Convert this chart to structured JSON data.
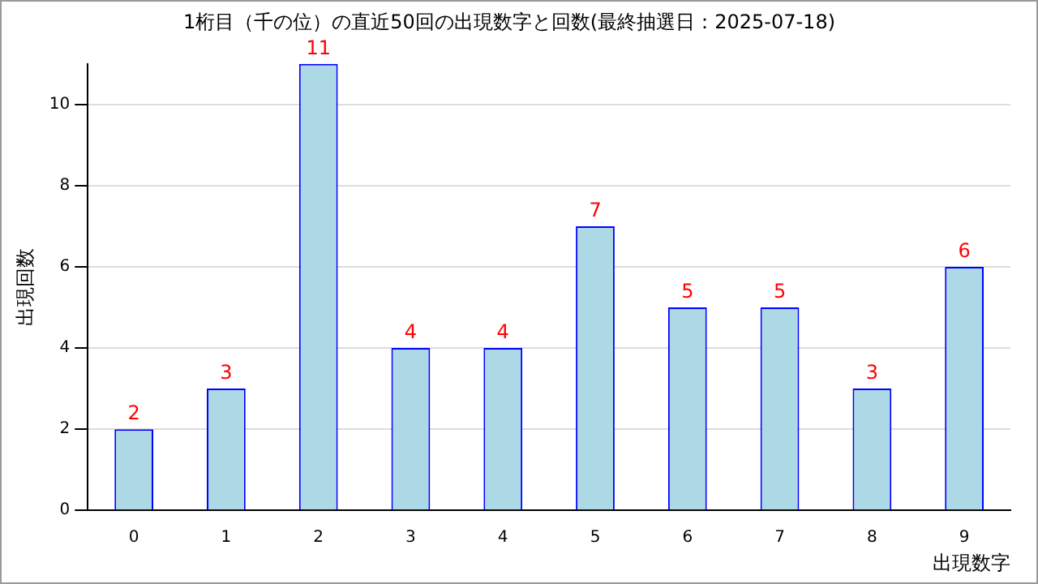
{
  "chart_data": {
    "type": "bar",
    "title": "1桁目（千の位）の直近50回の出現数字と回数(最終抽選日：2025-07-18)",
    "xlabel": "出現数字",
    "ylabel": "出現回数",
    "categories": [
      "0",
      "1",
      "2",
      "3",
      "4",
      "5",
      "6",
      "7",
      "8",
      "9"
    ],
    "values": [
      2,
      3,
      11,
      4,
      4,
      7,
      5,
      5,
      3,
      6
    ],
    "color": "#add8e6",
    "ylim": [
      0,
      11
    ],
    "yticks": [
      0,
      2,
      4,
      6,
      8,
      10
    ],
    "grid": "y",
    "data_labels": true
  }
}
